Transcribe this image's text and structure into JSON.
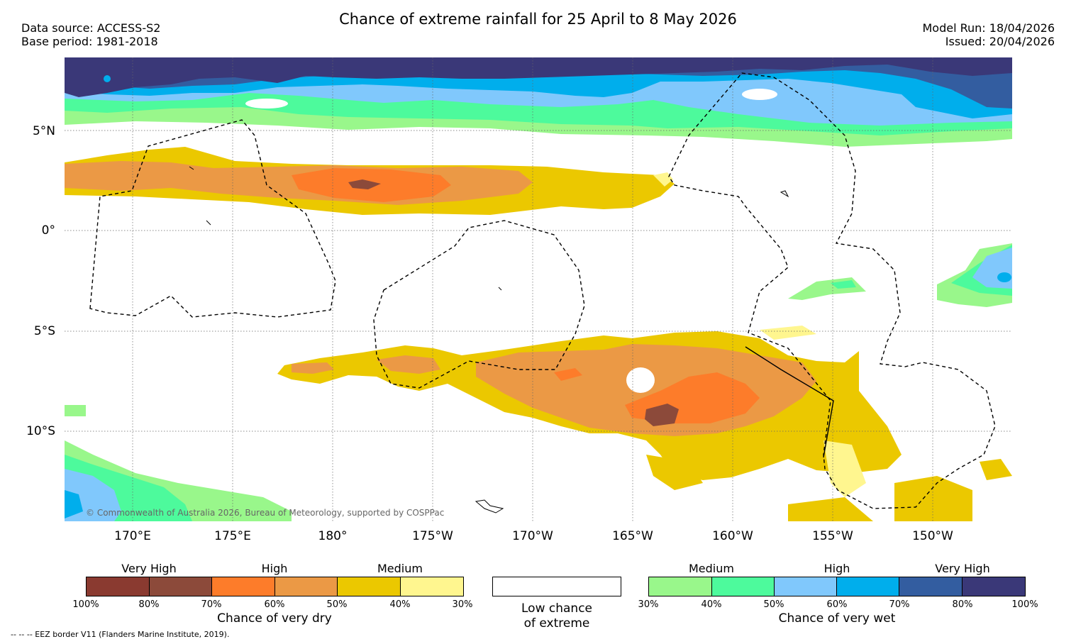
{
  "title": "Chance of extreme rainfall for 25 April to 8 May 2026",
  "data_source": "Data source: ACCESS-S2",
  "base_period": "Base period: 1981-2018",
  "model_run": "Model Run: 18/04/2026",
  "issued": "Issued: 20/04/2026",
  "copyright": "© Commonwealth of Australia 2026, Bureau of Meteorology, supported by COSPPac",
  "footnote": "--  --  -- EEZ border V11 (Flanders Marine Institute, 2019).",
  "lat_labels": [
    "5°N",
    "0°",
    "5°S",
    "10°S"
  ],
  "lon_labels": [
    "170°E",
    "175°E",
    "180°",
    "175°W",
    "170°W",
    "165°W",
    "160°W",
    "155°W",
    "150°W"
  ],
  "legend_dry": {
    "categories": [
      "Very High",
      "High",
      "Medium"
    ],
    "ticks": [
      "100%",
      "80%",
      "70%",
      "60%",
      "50%",
      "40%",
      "30%"
    ],
    "colors": [
      "#8a3a30",
      "#8c4a3a",
      "#fd7c2a",
      "#eb9945",
      "#ebc800",
      "#fff68f"
    ],
    "caption": "Chance of very dry"
  },
  "legend_low": {
    "line1": "Low chance",
    "line2": "of extreme"
  },
  "legend_wet": {
    "categories": [
      "Medium",
      "High",
      "Very High"
    ],
    "ticks": [
      "30%",
      "40%",
      "50%",
      "60%",
      "70%",
      "80%",
      "100%"
    ],
    "colors": [
      "#99f78b",
      "#4dfa9c",
      "#80c8fc",
      "#00aeec",
      "#335da0",
      "#3a3878"
    ],
    "caption": "Chance of very wet"
  }
}
